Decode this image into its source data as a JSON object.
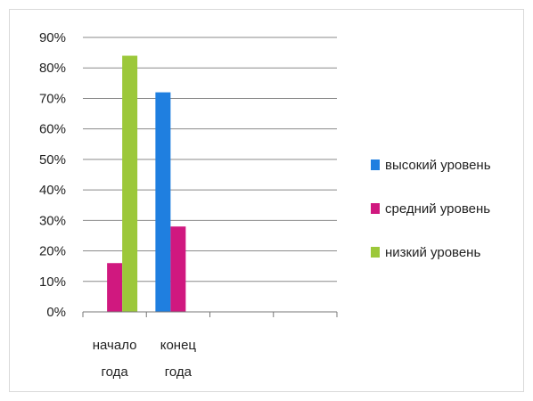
{
  "chart_data": {
    "type": "bar",
    "categories": [
      [
        "начало",
        "года"
      ],
      [
        "конец",
        "года"
      ],
      [
        "",
        ""
      ],
      [
        "",
        ""
      ]
    ],
    "series": [
      {
        "name": "высокий уровень",
        "values": [
          0,
          72,
          null,
          null
        ],
        "color": "#1f7fe0"
      },
      {
        "name": "средний уровень",
        "values": [
          16,
          28,
          null,
          null
        ],
        "color": "#d0187f"
      },
      {
        "name": "низкий уровень",
        "values": [
          84,
          0,
          null,
          null
        ],
        "color": "#9cc83a"
      }
    ],
    "y_ticks": [
      "0%",
      "10%",
      "20%",
      "30%",
      "40%",
      "50%",
      "60%",
      "70%",
      "80%",
      "90%"
    ],
    "ylim": [
      0,
      90
    ],
    "y_unit": "%",
    "grid": true,
    "legend_position": "right",
    "title": "",
    "xlabel": "",
    "ylabel": ""
  }
}
